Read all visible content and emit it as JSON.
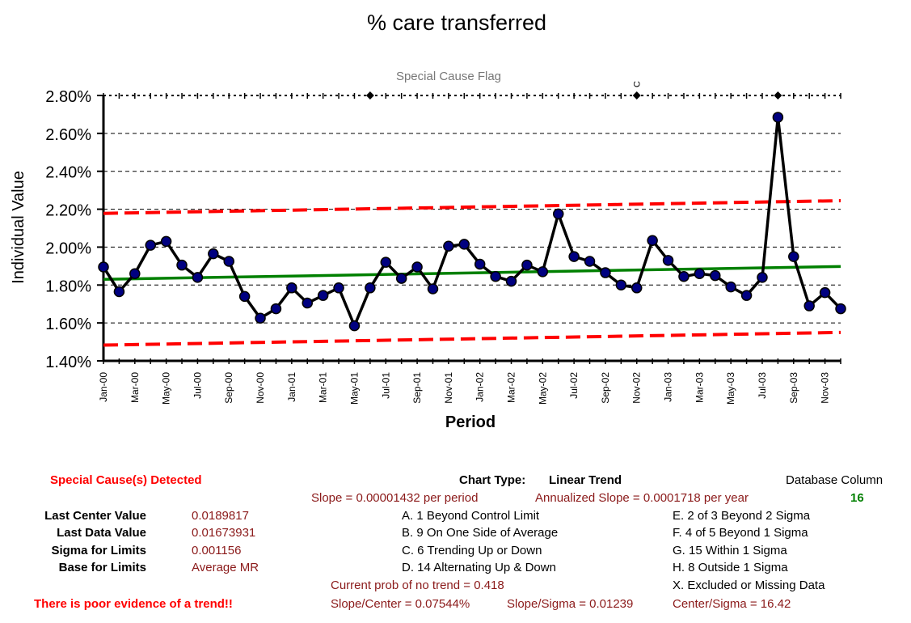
{
  "chart_data": {
    "type": "line",
    "title": "% care transferred",
    "subtitle": "Special Cause Flag",
    "xlabel": "Period",
    "ylabel": "Individual Value",
    "ylim": [
      0.014,
      0.028
    ],
    "y_ticks": [
      "1.40%",
      "1.60%",
      "1.80%",
      "2.00%",
      "2.20%",
      "2.40%",
      "2.60%",
      "2.80%"
    ],
    "grid": "horizontal dashed",
    "categories": [
      "Jan-00",
      "Feb-00",
      "Mar-00",
      "Apr-00",
      "May-00",
      "Jun-00",
      "Jul-00",
      "Aug-00",
      "Sep-00",
      "Oct-00",
      "Nov-00",
      "Dec-00",
      "Jan-01",
      "Feb-01",
      "Mar-01",
      "Apr-01",
      "May-01",
      "Jun-01",
      "Jul-01",
      "Aug-01",
      "Sep-01",
      "Oct-01",
      "Nov-01",
      "Dec-01",
      "Jan-02",
      "Feb-02",
      "Mar-02",
      "Apr-02",
      "May-02",
      "Jun-02",
      "Jul-02",
      "Aug-02",
      "Sep-02",
      "Oct-02",
      "Nov-02",
      "Dec-02",
      "Jan-03",
      "Feb-03",
      "Mar-03",
      "Apr-03",
      "May-03",
      "Jun-03",
      "Jul-03",
      "Aug-03",
      "Sep-03",
      "Oct-03",
      "Nov-03",
      "Dec-03"
    ],
    "tick_labels": [
      "Jan-00",
      "Mar-00",
      "May-00",
      "Jul-00",
      "Sep-00",
      "Nov-00",
      "Jan-01",
      "Mar-01",
      "May-01",
      "Jul-01",
      "Sep-01",
      "Nov-01",
      "Jan-02",
      "Mar-02",
      "May-02",
      "Jul-02",
      "Sep-02",
      "Nov-02",
      "Jan-03",
      "Mar-03",
      "May-03",
      "Jul-03",
      "Sep-03",
      "Nov-03"
    ],
    "series": [
      {
        "values": [
          0.01895,
          0.01765,
          0.0186,
          0.0201,
          0.0203,
          0.01905,
          0.0184,
          0.01965,
          0.01925,
          0.0174,
          0.01625,
          0.01675,
          0.01785,
          0.01705,
          0.01745,
          0.01785,
          0.01585,
          0.01785,
          0.0192,
          0.01835,
          0.01895,
          0.0178,
          0.02005,
          0.02015,
          0.0191,
          0.01845,
          0.0182,
          0.01905,
          0.0187,
          0.02175,
          0.0195,
          0.01925,
          0.01865,
          0.018,
          0.01785,
          0.02035,
          0.0193,
          0.01845,
          0.0186,
          0.0185,
          0.0179,
          0.01745,
          0.0184,
          0.02685,
          0.0195,
          0.0169,
          0.0176,
          0.01675
        ]
      }
    ],
    "center_line": {
      "start": 0.0183,
      "end": 0.01898
    },
    "upper_limit": {
      "start": 0.02178,
      "end": 0.02245
    },
    "lower_limit": {
      "start": 0.01483,
      "end": 0.0155
    },
    "special_cause_flags": [
      {
        "category": "Jun-01",
        "label": ""
      },
      {
        "category": "Nov-02",
        "label": "C"
      },
      {
        "category": "Aug-03",
        "label": ""
      }
    ],
    "colors": {
      "data_line": "#000000",
      "data_marker": "#000080",
      "center_line": "#008000",
      "limit_lines": "#ff0000",
      "grid": "#000000"
    }
  },
  "summary": {
    "special_causes": "Special Cause(s) Detected",
    "chart_type_label": "Chart Type:",
    "chart_type_value": "Linear Trend",
    "database_column_label": "Database Column",
    "database_column_value": "16",
    "slope": "Slope = 0.00001432 per period",
    "annualized_slope": "Annualized Slope = 0.0001718 per year",
    "stats": [
      {
        "label": "Last Center Value",
        "value": "0.0189817"
      },
      {
        "label": "Last Data Value",
        "value": "0.01673931"
      },
      {
        "label": "Sigma for Limits",
        "value": "0.001156"
      },
      {
        "label": "Base for Limits",
        "value": "Average MR"
      }
    ],
    "rules_left": [
      "A.  1 Beyond Control Limit",
      "B.  9 On One Side of Average",
      "C.  6 Trending Up or Down",
      "D.  14 Alternating  Up & Down"
    ],
    "rules_right": [
      "E.  2 of 3 Beyond 2 Sigma",
      "F.  4 of 5 Beyond 1 Sigma",
      "G.  15 Within 1 Sigma",
      "H.  8 Outside 1 Sigma",
      "X.  Excluded or Missing Data"
    ],
    "prob_no_trend": "Current prob of no trend = 0.418",
    "slope_center": "Slope/Center = 0.07544%",
    "slope_sigma": "Slope/Sigma = 0.01239",
    "center_sigma": "Center/Sigma = 16.42",
    "trend_warning": "There is poor evidence of a trend!!"
  }
}
